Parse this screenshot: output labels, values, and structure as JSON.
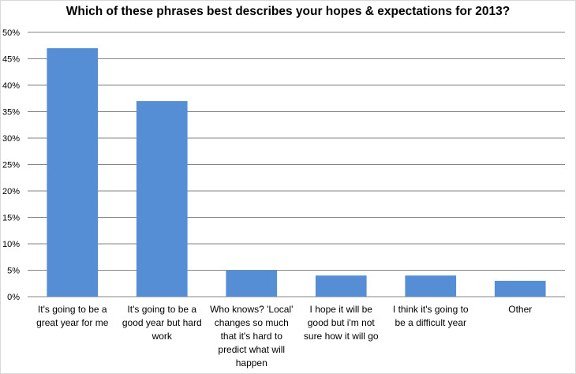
{
  "chart_data": {
    "type": "bar",
    "title": "Which of these phrases best describes your hopes & expectations for 2013?",
    "xlabel": "",
    "ylabel": "",
    "ylim": [
      0,
      50
    ],
    "yticks": [
      "0%",
      "5%",
      "10%",
      "15%",
      "20%",
      "25%",
      "30%",
      "35%",
      "40%",
      "45%",
      "50%"
    ],
    "grid": true,
    "bar_color": "#558ed5",
    "categories": [
      "It's going to be a\ngreat year for me",
      "It's going to be a\ngood year but hard\nwork",
      "Who knows? 'Local'\nchanges so much\nthat it's hard to\npredict what will\nhappen",
      "I hope it will be\ngood but i'm not\nsure how it will go",
      "I think it's going to\nbe a difficult  year",
      "Other"
    ],
    "values": [
      47,
      37,
      5,
      4,
      4,
      3
    ]
  }
}
